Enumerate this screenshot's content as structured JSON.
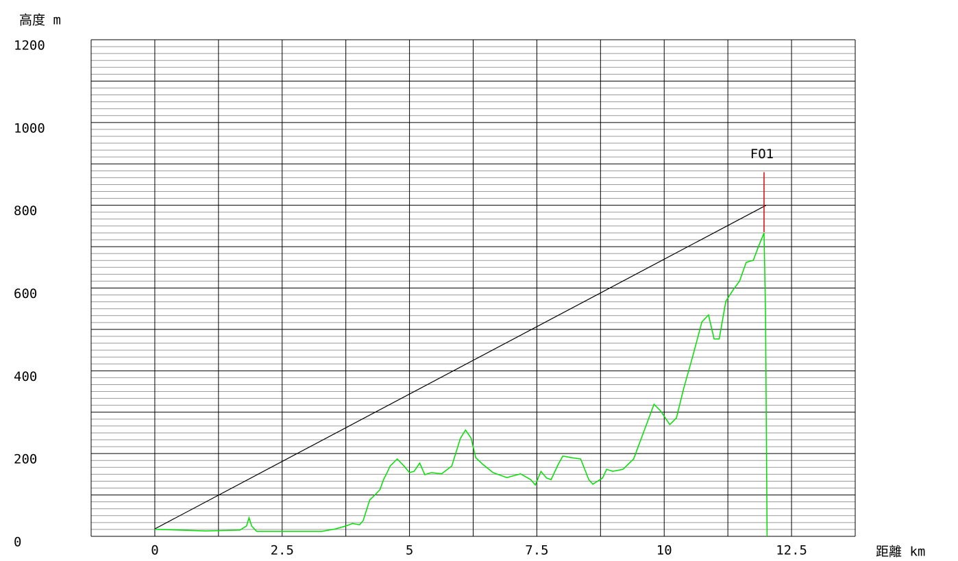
{
  "chart_data": {
    "type": "line",
    "ylabel": "高度 m",
    "xlabel": "距離 km",
    "xlim": [
      -1.25,
      13.75
    ],
    "ylim": [
      0,
      1200
    ],
    "xticks": [
      0,
      2.5,
      5,
      7.5,
      10,
      12.5
    ],
    "yticks": [
      0,
      200,
      400,
      600,
      800,
      1000,
      1200
    ],
    "xgrid": [
      -1.25,
      0,
      1.25,
      2.5,
      3.75,
      5,
      6.25,
      7.5,
      8.75,
      10,
      11.25,
      12.5,
      13.75
    ],
    "ygrid": [
      0,
      100,
      200,
      300,
      400,
      500,
      600,
      700,
      800,
      900,
      1000,
      1100,
      1200
    ],
    "minor_divisions": 6,
    "profile": {
      "color": "#00e000",
      "x": [
        0,
        1,
        1.67,
        1.8,
        1.85,
        1.9,
        2.0,
        2.34,
        3.28,
        3.55,
        3.75,
        3.88,
        4.02,
        4.09,
        4.22,
        4.33,
        4.42,
        4.49,
        4.56,
        4.62,
        4.76,
        4.89,
        5.0,
        5.09,
        5.2,
        5.3,
        5.43,
        5.63,
        5.83,
        6.0,
        6.1,
        6.21,
        6.3,
        6.44,
        6.64,
        6.91,
        7.18,
        7.38,
        7.47,
        7.58,
        7.69,
        7.78,
        7.92,
        8.01,
        8.19,
        8.36,
        8.52,
        8.6,
        8.79,
        8.87,
        8.99,
        9.19,
        9.4,
        9.6,
        9.8,
        9.93,
        10.11,
        10.24,
        10.38,
        10.56,
        10.74,
        10.87,
        10.98,
        11.08,
        11.21,
        11.34,
        11.48,
        11.61,
        11.75,
        11.85,
        11.96,
        11.99,
        12.02
      ],
      "values": [
        17,
        13,
        15,
        25,
        45,
        25,
        12,
        12,
        12,
        18,
        25,
        31,
        28,
        38,
        88,
        101,
        113,
        137,
        154,
        170,
        187,
        170,
        154,
        157,
        177,
        149,
        154,
        151,
        170,
        237,
        257,
        237,
        190,
        174,
        154,
        142,
        151,
        137,
        124,
        157,
        141,
        137,
        174,
        194,
        190,
        187,
        137,
        126,
        141,
        162,
        157,
        162,
        187,
        253,
        319,
        303,
        270,
        286,
        356,
        435,
        518,
        535,
        477,
        477,
        568,
        593,
        617,
        662,
        667,
        700,
        733,
        535,
        0
      ]
    },
    "sight_line": {
      "color": "#000000",
      "x": [
        0,
        12
      ],
      "values": [
        18,
        800
      ]
    },
    "annotation": {
      "text": "FO1",
      "x": 11.96,
      "y": [
        735,
        880
      ],
      "color": "#e00000"
    }
  }
}
